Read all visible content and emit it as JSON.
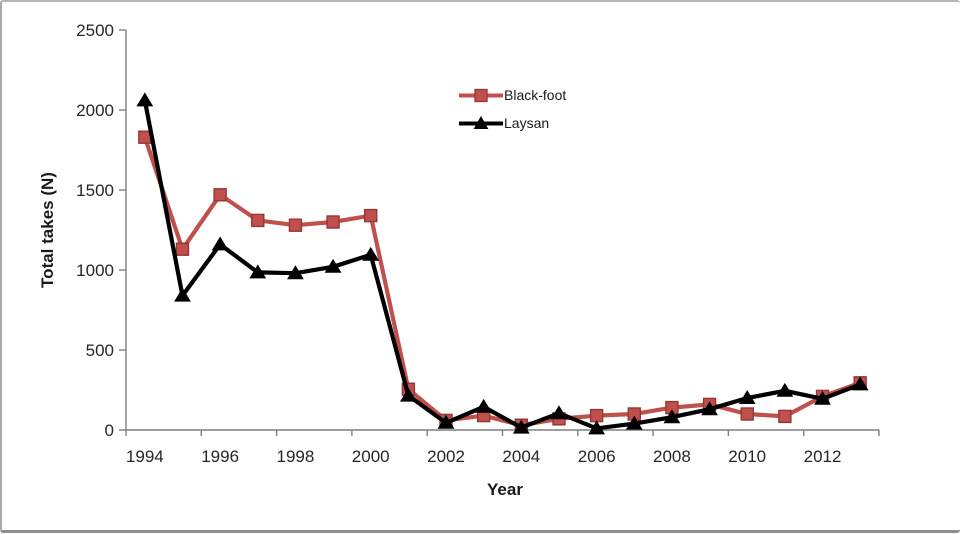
{
  "frame": {
    "background": "#ffffff",
    "border_color": "#a0a0a0"
  },
  "chart_data": {
    "type": "line",
    "xlabel": "Year",
    "ylabel": "Total takes (N)",
    "x": [
      1994,
      1995,
      1996,
      1997,
      1998,
      1999,
      2000,
      2001,
      2002,
      2003,
      2004,
      2005,
      2006,
      2007,
      2008,
      2009,
      2010,
      2011,
      2012,
      2013
    ],
    "series": [
      {
        "name": "Black-foot",
        "marker": "square",
        "color": "#c0504d",
        "marker_edge_color": "#943634",
        "values": [
          1830,
          1130,
          1470,
          1310,
          1280,
          1300,
          1340,
          255,
          60,
          90,
          30,
          70,
          90,
          100,
          140,
          160,
          100,
          85,
          210,
          295
        ]
      },
      {
        "name": "Laysan",
        "marker": "triangle",
        "color": "#000000",
        "marker_edge_color": "#000000",
        "values": [
          2060,
          840,
          1160,
          985,
          980,
          1020,
          1095,
          215,
          45,
          145,
          15,
          105,
          10,
          40,
          80,
          130,
          200,
          245,
          195,
          285
        ]
      }
    ],
    "ylim": [
      0,
      2500
    ],
    "y_ticks": [
      0,
      500,
      1000,
      1500,
      2000,
      2500
    ],
    "x_tick_labels": [
      "1994",
      "1996",
      "1998",
      "2000",
      "2002",
      "2004",
      "2006",
      "2008",
      "2010",
      "2012"
    ],
    "grid": false,
    "legend_position": "inside-top-center",
    "axis_color": "#7f7f7f",
    "text_color": "#262626"
  }
}
